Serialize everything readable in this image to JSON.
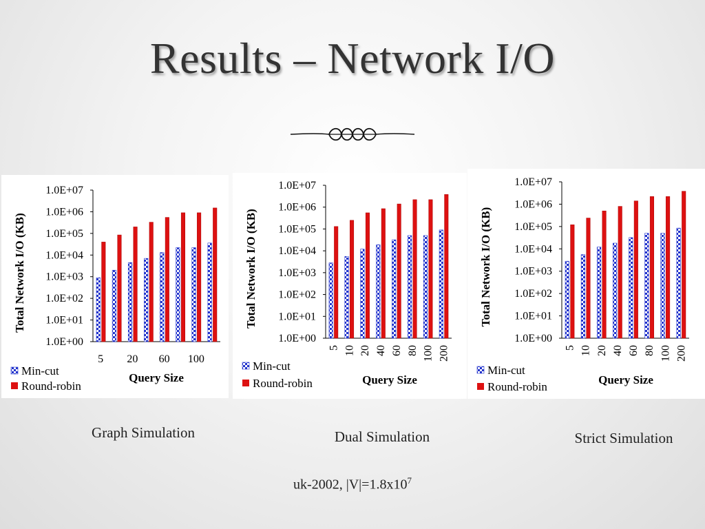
{
  "title": "Results – Network I/O",
  "colors": {
    "min_cut": "#2233cc",
    "round_robin": "#dd1111"
  },
  "chart_data": [
    {
      "type": "bar",
      "caption": "Graph Simulation",
      "ylabel": "Total Network I/O (KB)",
      "xlabel": "Query Size",
      "log_scale": true,
      "ylim": [
        1,
        10000000
      ],
      "ytick_labels": [
        "1.0E+00",
        "1.0E+01",
        "1.0E+02",
        "1.0E+03",
        "1.0E+04",
        "1.0E+05",
        "1.0E+06",
        "1.0E+07"
      ],
      "categories": [
        "5",
        "10",
        "20",
        "40",
        "60",
        "80",
        "100",
        "200"
      ],
      "xtick_labels": [
        "5",
        "20",
        "60",
        "100"
      ],
      "xtick_rotated": false,
      "series": [
        {
          "name": "Min-cut",
          "values": [
            900,
            2000,
            4500,
            7000,
            13000,
            22000,
            22000,
            36000
          ]
        },
        {
          "name": "Round-robin",
          "values": [
            40000,
            85000,
            200000,
            330000,
            550000,
            900000,
            900000,
            1500000
          ]
        }
      ]
    },
    {
      "type": "bar",
      "caption": "Dual Simulation",
      "ylabel": "Total Network I/O (KB)",
      "xlabel": "Query Size",
      "log_scale": true,
      "ylim": [
        1,
        10000000
      ],
      "ytick_labels": [
        "1.0E+00",
        "1.0E+01",
        "1.0E+02",
        "1.0E+03",
        "1.0E+04",
        "1.0E+05",
        "1.0E+06",
        "1.0E+07"
      ],
      "categories": [
        "5",
        "10",
        "20",
        "40",
        "60",
        "80",
        "100",
        "200"
      ],
      "xtick_labels": [
        "5",
        "10",
        "20",
        "40",
        "60",
        "80",
        "100",
        "200"
      ],
      "xtick_rotated": true,
      "series": [
        {
          "name": "Min-cut",
          "values": [
            2800,
            5500,
            12000,
            19000,
            32000,
            50000,
            50000,
            90000
          ]
        },
        {
          "name": "Round-robin",
          "values": [
            130000,
            250000,
            550000,
            850000,
            1400000,
            2200000,
            2200000,
            3800000
          ]
        }
      ]
    },
    {
      "type": "bar",
      "caption": "Strict Simulation",
      "ylabel": "Total Network I/O (KB)",
      "xlabel": "Query Size",
      "log_scale": true,
      "ylim": [
        1,
        10000000
      ],
      "ytick_labels": [
        "1.0E+00",
        "1.0E+01",
        "1.0E+02",
        "1.0E+03",
        "1.0E+04",
        "1.0E+05",
        "1.0E+06",
        "1.0E+07"
      ],
      "categories": [
        "5",
        "10",
        "20",
        "40",
        "60",
        "80",
        "100",
        "200"
      ],
      "xtick_labels": [
        "5",
        "10",
        "20",
        "40",
        "60",
        "80",
        "100",
        "200"
      ],
      "xtick_rotated": true,
      "series": [
        {
          "name": "Min-cut",
          "values": [
            2800,
            5500,
            12000,
            18000,
            32000,
            50000,
            50000,
            85000
          ]
        },
        {
          "name": "Round-robin",
          "values": [
            120000,
            240000,
            500000,
            800000,
            1400000,
            2200000,
            2200000,
            3800000
          ]
        }
      ]
    }
  ],
  "footnote": {
    "text": "uk-2002, |V|=1.8x10",
    "exponent": "7"
  }
}
